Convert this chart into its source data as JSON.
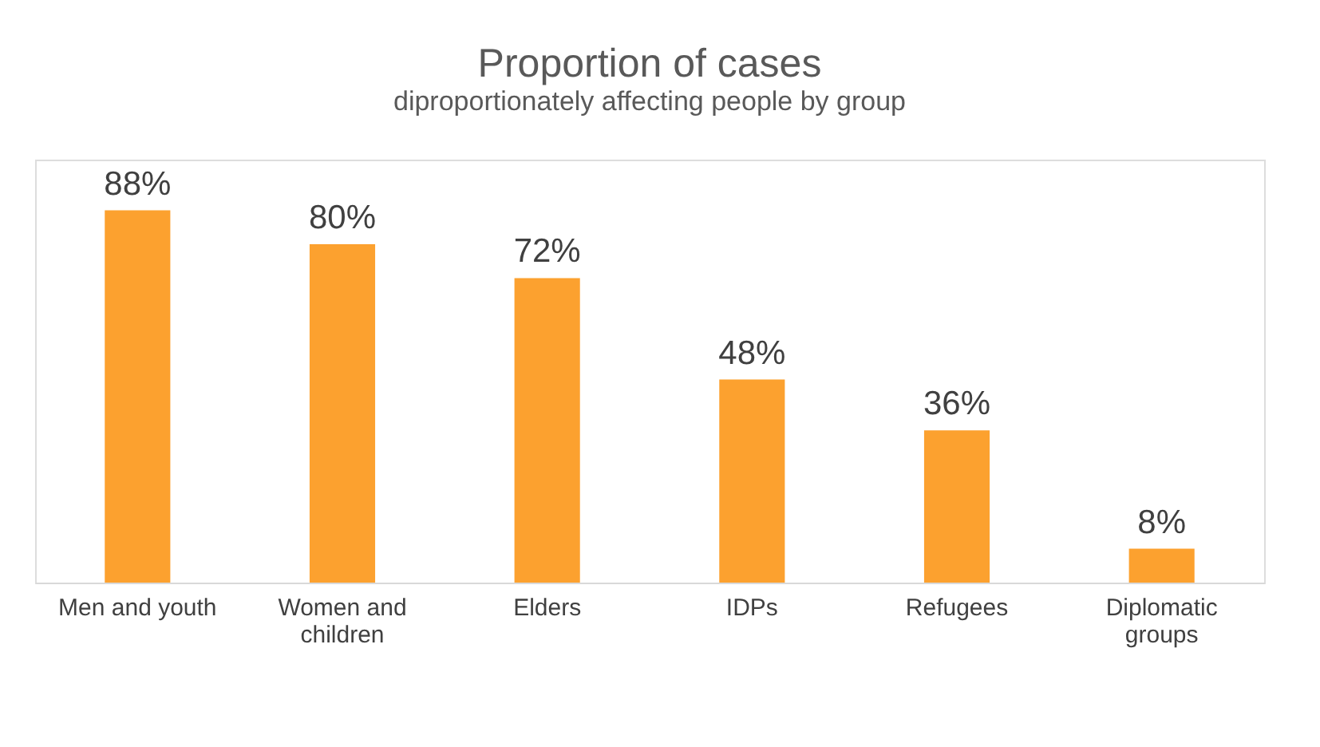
{
  "chart_data": {
    "type": "bar",
    "title": "Proportion of cases",
    "subtitle": "diproportionately affecting people by group",
    "categories": [
      "Men and youth",
      "Women and children",
      "Elders",
      "IDPs",
      "Refugees",
      "Diplomatic groups"
    ],
    "values": [
      88,
      80,
      72,
      48,
      36,
      8
    ],
    "value_labels": [
      "88%",
      "80%",
      "72%",
      "48%",
      "36%",
      "8%"
    ],
    "color": "#fca12f",
    "ylim": [
      0,
      100
    ],
    "tick_labels": "x",
    "grid": false
  }
}
